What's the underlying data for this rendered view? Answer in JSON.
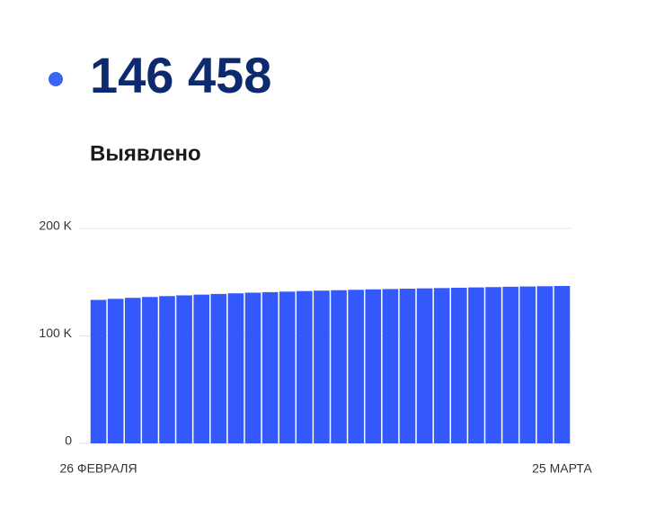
{
  "chart_data": {
    "type": "bar",
    "headline": "146 458",
    "title": "Выявлено",
    "categories": [
      "26 ФЕВРАЛЯ",
      null,
      null,
      null,
      null,
      null,
      null,
      null,
      null,
      null,
      null,
      null,
      null,
      null,
      null,
      null,
      null,
      null,
      null,
      null,
      null,
      null,
      null,
      null,
      null,
      null,
      null,
      "25 МАРТА"
    ],
    "values": [
      133500,
      134500,
      135400,
      136200,
      137000,
      137700,
      138400,
      139000,
      139600,
      140200,
      140700,
      141200,
      141700,
      142100,
      142500,
      142900,
      143300,
      143600,
      143900,
      144200,
      144500,
      144800,
      145100,
      145400,
      145700,
      145950,
      146200,
      146458
    ],
    "color": "#3358fb",
    "ylim": [
      0,
      200000
    ],
    "yticks": [
      {
        "value": 0,
        "label": "0"
      },
      {
        "value": 100000,
        "label": "100 K"
      },
      {
        "value": 200000,
        "label": "200 K"
      }
    ],
    "grid": true
  }
}
